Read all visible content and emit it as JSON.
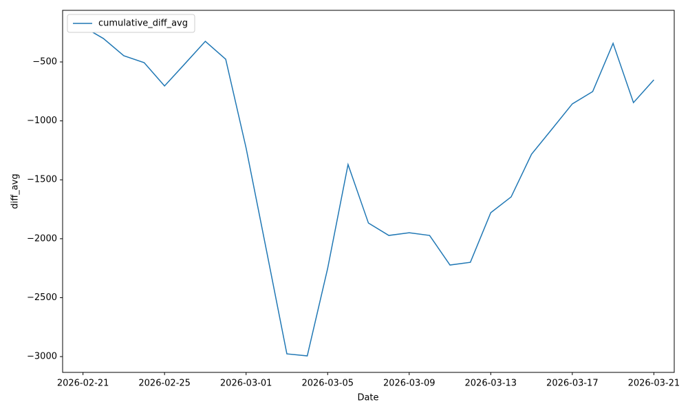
{
  "chart_data": {
    "type": "line",
    "xlabel": "Date",
    "ylabel": "diff_avg",
    "x": [
      "2026-02-21",
      "2026-02-22",
      "2026-02-23",
      "2026-02-24",
      "2026-02-25",
      "2026-02-26",
      "2026-02-27",
      "2026-02-28",
      "2026-03-01",
      "2026-03-02",
      "2026-03-03",
      "2026-03-04",
      "2026-03-05",
      "2026-03-06",
      "2026-03-07",
      "2026-03-08",
      "2026-03-09",
      "2026-03-10",
      "2026-03-11",
      "2026-03-12",
      "2026-03-13",
      "2026-03-14",
      "2026-03-15",
      "2026-03-16",
      "2026-03-17",
      "2026-03-18",
      "2026-03-19",
      "2026-03-20",
      "2026-03-21"
    ],
    "series": [
      {
        "name": "cumulative_diff_avg",
        "color": "#1f77b4",
        "values": [
          -200,
          -301,
          -447,
          -506,
          -704,
          -515,
          -325,
          -477,
          -1230,
          -2100,
          -2977,
          -2994,
          -2252,
          -1370,
          -1867,
          -1972,
          -1949,
          -1972,
          -2223,
          -2200,
          -1779,
          -1645,
          -1283,
          -1070,
          -856,
          -751,
          -342,
          -845,
          -652
        ]
      }
    ],
    "xlim": [
      "2026-02-20",
      "2026-03-22"
    ],
    "xticks": [
      "2026-02-21",
      "2026-02-25",
      "2026-03-01",
      "2026-03-05",
      "2026-03-09",
      "2026-03-13",
      "2026-03-17",
      "2026-03-21"
    ],
    "ylim": [
      -3134,
      -62
    ],
    "yticks": [
      {
        "value": -3000,
        "label": "−3000"
      },
      {
        "value": -2500,
        "label": "−2500"
      },
      {
        "value": -2000,
        "label": "−2000"
      },
      {
        "value": -1500,
        "label": "−1500"
      },
      {
        "value": -1000,
        "label": "−1000"
      },
      {
        "value": -500,
        "label": "−500"
      }
    ],
    "legend": "upper left"
  }
}
